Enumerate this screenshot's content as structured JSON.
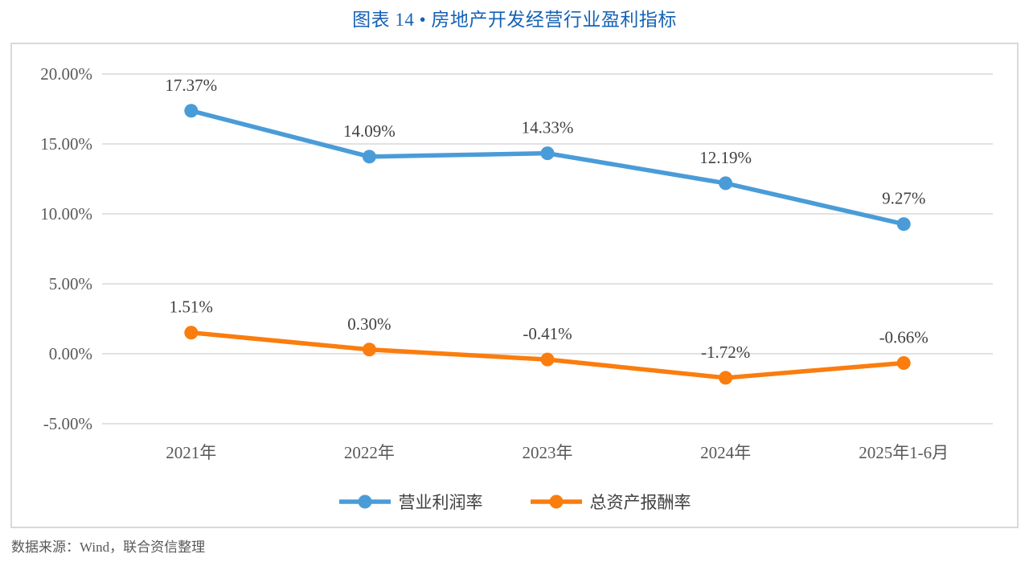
{
  "title": "图表 14 • 房地产开发经营行业盈利指标",
  "footer": "数据来源：Wind，联合资信整理",
  "colors": {
    "title_text": "#1562B5",
    "axis_text": "#595959",
    "data_label_text": "#404040",
    "gridline": "#D9D9D9",
    "plot_border": "#D9D9D9",
    "series_blue": "#4A9CD8",
    "series_orange": "#FA7D0E"
  },
  "chart_data": {
    "type": "line",
    "title": "图表 14 • 房地产开发经营行业盈利指标",
    "categories": [
      "2021年",
      "2022年",
      "2023年",
      "2024年",
      "2025年1-6月"
    ],
    "series": [
      {
        "name": "营业利润率",
        "color": "#4A9CD8",
        "values": [
          17.37,
          14.09,
          14.33,
          12.19,
          9.27
        ],
        "labels": [
          "17.37%",
          "14.09%",
          "14.33%",
          "12.19%",
          "9.27%"
        ]
      },
      {
        "name": "总资产报酬率",
        "color": "#FA7D0E",
        "values": [
          1.51,
          0.3,
          -0.41,
          -1.72,
          -0.66
        ],
        "labels": [
          "1.51%",
          "0.30%",
          "-0.41%",
          "-1.72%",
          "-0.66%"
        ]
      }
    ],
    "y_axis": {
      "min": -5,
      "max": 20,
      "step": 5,
      "ticks": [
        {
          "value": 20,
          "label": "20.00%"
        },
        {
          "value": 15,
          "label": "15.00%"
        },
        {
          "value": 10,
          "label": "10.00%"
        },
        {
          "value": 5,
          "label": "5.00%"
        },
        {
          "value": 0,
          "label": "0.00%"
        },
        {
          "value": -5,
          "label": "-5.00%"
        }
      ]
    },
    "grid": true,
    "legend_position": "bottom",
    "source_note": "数据来源：Wind，联合资信整理"
  }
}
